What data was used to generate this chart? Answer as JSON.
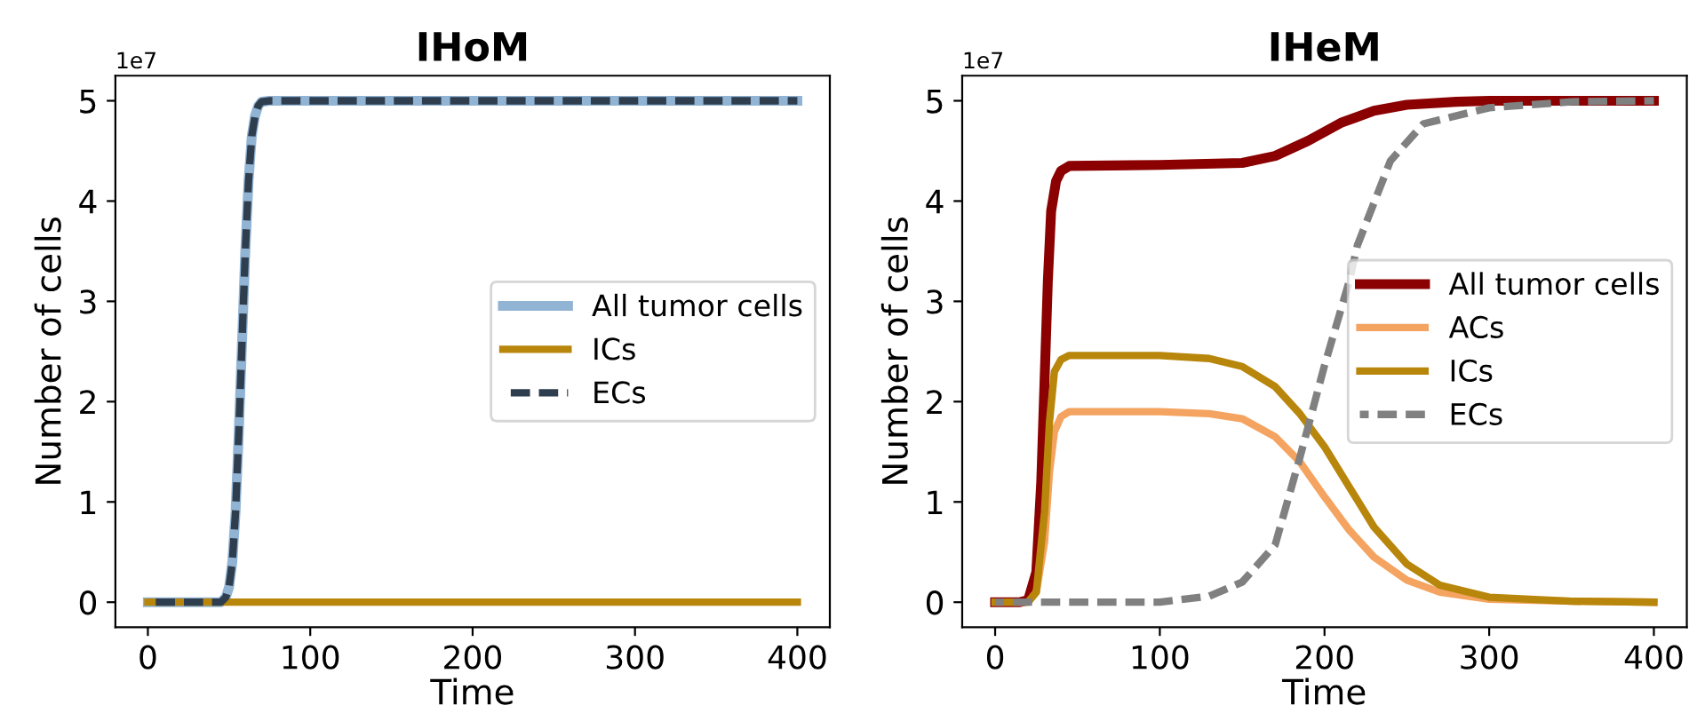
{
  "chart_data": [
    {
      "type": "line",
      "title": "IHoM",
      "xlabel": "Time",
      "ylabel": "Number of cells",
      "annotations": [
        "1e7"
      ],
      "xlim": [
        -20,
        420
      ],
      "xticks": [
        0,
        100,
        200,
        300,
        400
      ],
      "ylim": [
        -0.25,
        5.25
      ],
      "yticks": [
        0,
        1,
        2,
        3,
        4,
        5
      ],
      "grid": false,
      "legend": "right",
      "series": [
        {
          "name": "All tumor cells",
          "color": "#92b4d4",
          "line_style": "solid",
          "x": [
            0,
            40,
            45,
            48,
            50,
            52,
            54,
            56,
            58,
            60,
            62,
            64,
            66,
            68,
            70,
            75,
            100,
            200,
            300,
            400
          ],
          "values": [
            0,
            0,
            0,
            0.05,
            0.15,
            0.4,
            0.9,
            1.7,
            2.6,
            3.5,
            4.2,
            4.65,
            4.85,
            4.95,
            4.99,
            5,
            5,
            5,
            5,
            5
          ]
        },
        {
          "name": "ICs",
          "color": "#b8860b",
          "line_style": "solid",
          "x": [
            0,
            100,
            200,
            300,
            400
          ],
          "values": [
            0,
            0,
            0,
            0,
            0
          ]
        },
        {
          "name": "ECs",
          "color": "#2f3e4e",
          "line_style": "dashed",
          "x": [
            0,
            40,
            45,
            48,
            50,
            52,
            54,
            56,
            58,
            60,
            62,
            64,
            66,
            68,
            70,
            75,
            100,
            200,
            300,
            400
          ],
          "values": [
            0,
            0,
            0,
            0.05,
            0.15,
            0.4,
            0.9,
            1.7,
            2.6,
            3.5,
            4.2,
            4.65,
            4.85,
            4.95,
            4.99,
            5,
            5,
            5,
            5,
            5
          ]
        }
      ]
    },
    {
      "type": "line",
      "title": "IHeM",
      "xlabel": "Time",
      "ylabel": "Number of cells",
      "annotations": [
        "1e7"
      ],
      "xlim": [
        -20,
        420
      ],
      "xticks": [
        0,
        100,
        200,
        300,
        400
      ],
      "ylim": [
        -0.25,
        5.25
      ],
      "yticks": [
        0,
        1,
        2,
        3,
        4,
        5
      ],
      "grid": false,
      "legend": "right",
      "series": [
        {
          "name": "All tumor cells",
          "color": "#8b0000",
          "line_style": "solid",
          "x": [
            0,
            15,
            20,
            25,
            28,
            30,
            32,
            34,
            37,
            40,
            45,
            100,
            150,
            170,
            190,
            210,
            230,
            250,
            280,
            300,
            400
          ],
          "values": [
            0,
            0,
            0.02,
            0.3,
            1.2,
            2.2,
            3.2,
            3.9,
            4.2,
            4.3,
            4.35,
            4.36,
            4.38,
            4.45,
            4.6,
            4.78,
            4.9,
            4.96,
            4.99,
            5,
            5
          ]
        },
        {
          "name": "ACs",
          "color": "#f4a460",
          "line_style": "solid",
          "x": [
            0,
            20,
            25,
            30,
            33,
            36,
            40,
            45,
            100,
            130,
            150,
            170,
            185,
            200,
            215,
            230,
            250,
            270,
            300,
            350,
            400
          ],
          "values": [
            0,
            0,
            0.1,
            0.6,
            1.3,
            1.7,
            1.85,
            1.9,
            1.9,
            1.88,
            1.83,
            1.65,
            1.4,
            1.05,
            0.72,
            0.45,
            0.22,
            0.1,
            0.03,
            0.01,
            0
          ]
        },
        {
          "name": "ICs",
          "color": "#b8860b",
          "line_style": "solid",
          "x": [
            0,
            20,
            25,
            30,
            33,
            36,
            40,
            45,
            100,
            130,
            150,
            170,
            185,
            200,
            215,
            230,
            250,
            270,
            300,
            350,
            400
          ],
          "values": [
            0,
            0,
            0.1,
            0.9,
            1.8,
            2.3,
            2.42,
            2.46,
            2.46,
            2.43,
            2.35,
            2.15,
            1.88,
            1.55,
            1.15,
            0.75,
            0.38,
            0.17,
            0.05,
            0.01,
            0
          ]
        },
        {
          "name": "ECs",
          "color": "#808080",
          "line_style": "dashed",
          "x": [
            0,
            100,
            130,
            150,
            170,
            185,
            200,
            215,
            220,
            240,
            260,
            300,
            350,
            400
          ],
          "values": [
            0,
            0,
            0.06,
            0.2,
            0.57,
            1.44,
            2.36,
            3.2,
            3.56,
            4.4,
            4.77,
            4.93,
            4.99,
            5
          ]
        }
      ]
    }
  ]
}
